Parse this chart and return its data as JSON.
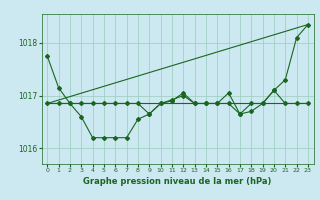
{
  "title": "Graphe pression niveau de la mer (hPa)",
  "bg_color": "#cce8f0",
  "grid_color": "#99ccbb",
  "line_color": "#1a6620",
  "xlim": [
    -0.5,
    23.5
  ],
  "ylim": [
    1015.7,
    1018.55
  ],
  "yticks": [
    1016,
    1017,
    1018
  ],
  "xticks": [
    0,
    1,
    2,
    3,
    4,
    5,
    6,
    7,
    8,
    9,
    10,
    11,
    12,
    13,
    14,
    15,
    16,
    17,
    18,
    19,
    20,
    21,
    22,
    23
  ],
  "series_jagged1": {
    "x": [
      0,
      1,
      2,
      3,
      4,
      5,
      6,
      7,
      8,
      9,
      10,
      11,
      12,
      13,
      14,
      15,
      16,
      17,
      18,
      19,
      20,
      21,
      22,
      23
    ],
    "y": [
      1017.75,
      1017.15,
      1016.85,
      1016.6,
      1016.2,
      1016.2,
      1016.2,
      1016.2,
      1016.55,
      1016.65,
      1016.85,
      1016.9,
      1017.05,
      1016.85,
      1016.85,
      1016.85,
      1016.85,
      1016.65,
      1016.7,
      1016.85,
      1017.1,
      1017.3,
      1018.1,
      1018.35
    ]
  },
  "series_flat": {
    "x": [
      0,
      23
    ],
    "y": [
      1016.85,
      1016.85
    ]
  },
  "series_jagged2": {
    "x": [
      0,
      1,
      2,
      3,
      4,
      5,
      6,
      7,
      8,
      9,
      10,
      11,
      12,
      13,
      14,
      15,
      16,
      17,
      18,
      19,
      20,
      21,
      22,
      23
    ],
    "y": [
      1016.85,
      1016.85,
      1016.85,
      1016.85,
      1016.85,
      1016.85,
      1016.85,
      1016.85,
      1016.85,
      1016.65,
      1016.85,
      1016.92,
      1017.0,
      1016.85,
      1016.85,
      1016.85,
      1017.05,
      1016.65,
      1016.85,
      1016.85,
      1017.1,
      1016.85,
      1016.85,
      1016.85
    ]
  },
  "series_trend": {
    "x": [
      0,
      23
    ],
    "y": [
      1016.85,
      1018.35
    ]
  }
}
